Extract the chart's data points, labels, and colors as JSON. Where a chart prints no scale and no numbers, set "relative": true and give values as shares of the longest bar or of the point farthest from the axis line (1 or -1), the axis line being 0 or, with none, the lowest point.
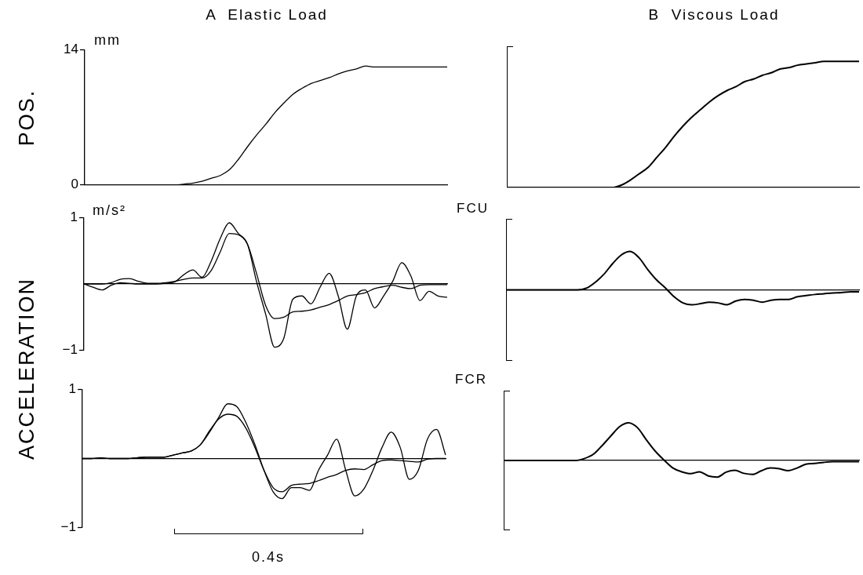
{
  "chart_data": [
    {
      "type": "line",
      "title": "A  Elastic Load",
      "ylabel": "POS.",
      "annotations": [
        "mm"
      ],
      "ylim": [
        0,
        14
      ],
      "yticks": [
        0,
        14
      ],
      "tick_labels": "y",
      "legend": false,
      "categories": [
        null,
        null,
        null,
        null,
        null,
        null,
        null,
        null,
        null,
        null,
        null,
        null,
        null,
        null,
        null,
        null,
        null,
        null,
        null,
        null,
        null,
        null,
        null,
        null,
        null,
        null,
        null,
        null,
        null,
        null,
        null,
        null,
        null,
        null,
        null,
        null,
        null,
        null,
        null,
        null,
        null
      ],
      "series": [
        {
          "color": "#000000",
          "values": [
            0,
            0,
            0,
            0,
            0,
            0,
            0,
            0,
            0,
            0,
            0,
            0.1,
            0.2,
            0.4,
            0.7,
            1.0,
            1.6,
            2.7,
            4.0,
            5.2,
            6.3,
            7.5,
            8.5,
            9.4,
            10.0,
            10.5,
            10.8,
            11.1,
            11.5,
            11.8,
            12.0,
            12.3,
            12.2,
            12.2,
            12.2,
            12.2,
            12.2,
            12.2,
            12.2,
            12.2,
            12.2
          ]
        }
      ]
    },
    {
      "type": "line",
      "title": "B  Viscous Load",
      "relative": true,
      "tick_labels": false,
      "legend": false,
      "categories": [
        null,
        null,
        null,
        null,
        null,
        null,
        null,
        null,
        null,
        null,
        null,
        null,
        null,
        null,
        null,
        null,
        null,
        null,
        null,
        null,
        null,
        null,
        null,
        null,
        null,
        null,
        null,
        null,
        null,
        null,
        null,
        null,
        null,
        null,
        null,
        null,
        null,
        null,
        null,
        null,
        null
      ],
      "series": [
        {
          "color": "#000000",
          "values": [
            0,
            0,
            0,
            0,
            0,
            0,
            0,
            0,
            0,
            0,
            0,
            0,
            0,
            0.02,
            0.06,
            0.11,
            0.16,
            0.24,
            0.32,
            0.41,
            0.49,
            0.56,
            0.62,
            0.68,
            0.73,
            0.77,
            0.8,
            0.84,
            0.86,
            0.89,
            0.91,
            0.94,
            0.95,
            0.97,
            0.98,
            0.99,
            1,
            1,
            1,
            1,
            1
          ]
        }
      ]
    },
    {
      "type": "line",
      "ylabel": "ACCELERATION",
      "annotations": [
        "m/s²"
      ],
      "ylim": [
        -1,
        1
      ],
      "yticks": [
        1,
        {
          "value": -1,
          "label": "−1"
        }
      ],
      "tick_labels": "y",
      "legend": false,
      "categories": [
        null,
        null,
        null,
        null,
        null,
        null,
        null,
        null,
        null,
        null,
        null,
        null,
        null,
        null,
        null,
        null,
        null,
        null,
        null,
        null,
        null,
        null,
        null,
        null,
        null,
        null,
        null,
        null,
        null,
        null,
        null,
        null,
        null,
        null,
        null,
        null,
        null,
        null,
        null,
        null,
        null
      ],
      "series": [
        {
          "color": "#000000",
          "values": [
            0,
            -0.05,
            -0.09,
            -0.02,
            0.02,
            0.01,
            0,
            0,
            0,
            0.01,
            0.03,
            0.14,
            0.21,
            0.1,
            0.34,
            0.68,
            0.92,
            0.76,
            0.6,
            0.04,
            -0.45,
            -0.95,
            -0.82,
            -0.23,
            -0.18,
            -0.3,
            -0.05,
            0.16,
            -0.18,
            -0.68,
            -0.18,
            -0.09,
            -0.36,
            -0.18,
            0.04,
            0.32,
            0.12,
            -0.25,
            -0.11,
            -0.18,
            -0.2
          ]
        },
        {
          "color": "#000000",
          "values": [
            0,
            0,
            0,
            0.02,
            0.07,
            0.08,
            0.04,
            0.01,
            0.01,
            0.02,
            0.04,
            0.07,
            0.09,
            0.09,
            0.2,
            0.48,
            0.76,
            0.74,
            0.6,
            0.16,
            -0.32,
            -0.52,
            -0.5,
            -0.42,
            -0.41,
            -0.39,
            -0.35,
            -0.31,
            -0.25,
            -0.18,
            -0.16,
            -0.13,
            -0.07,
            -0.04,
            -0.02,
            -0.05,
            -0.07,
            -0.02,
            -0.01,
            -0.01,
            -0.01
          ]
        }
      ]
    },
    {
      "type": "line",
      "ylabel": "FCU",
      "relative": true,
      "tick_labels": false,
      "legend": false,
      "categories": [
        null,
        null,
        null,
        null,
        null,
        null,
        null,
        null,
        null,
        null,
        null,
        null,
        null,
        null,
        null,
        null,
        null,
        null,
        null,
        null,
        null,
        null,
        null,
        null,
        null,
        null,
        null,
        null,
        null,
        null,
        null,
        null,
        null,
        null,
        null,
        null,
        null,
        null,
        null,
        null,
        null
      ],
      "series": [
        {
          "color": "#000000",
          "values": [
            0,
            0,
            0,
            0,
            0,
            0,
            0,
            0,
            0,
            0.04,
            0.19,
            0.4,
            0.68,
            0.91,
            1,
            0.84,
            0.53,
            0.26,
            0.05,
            -0.18,
            -0.34,
            -0.39,
            -0.36,
            -0.32,
            -0.34,
            -0.39,
            -0.29,
            -0.25,
            -0.27,
            -0.32,
            -0.27,
            -0.25,
            -0.25,
            -0.18,
            -0.15,
            -0.12,
            -0.1,
            -0.08,
            -0.07,
            -0.05,
            -0.05
          ]
        }
      ]
    },
    {
      "type": "line",
      "annotations": [
        "0.4s"
      ],
      "ylim": [
        -1,
        1
      ],
      "yticks": [
        1,
        {
          "value": -1,
          "label": "−1"
        }
      ],
      "tick_labels": "y",
      "legend": false,
      "categories": [
        null,
        null,
        null,
        null,
        null,
        null,
        null,
        null,
        null,
        null,
        null,
        null,
        null,
        null,
        null,
        null,
        null,
        null,
        null,
        null,
        null,
        null,
        null,
        null,
        null,
        null,
        null,
        null,
        null,
        null,
        null,
        null,
        null,
        null,
        null,
        null,
        null,
        null,
        null,
        null,
        null
      ],
      "series": [
        {
          "color": "#000000",
          "values": [
            0,
            0,
            0.01,
            0,
            0,
            0,
            0.01,
            0.02,
            0.02,
            0.02,
            0.05,
            0.08,
            0.11,
            0.2,
            0.38,
            0.59,
            0.79,
            0.75,
            0.52,
            0.2,
            -0.17,
            -0.48,
            -0.58,
            -0.42,
            -0.42,
            -0.46,
            -0.17,
            0.05,
            0.28,
            -0.17,
            -0.54,
            -0.44,
            -0.17,
            0.16,
            0.38,
            0.16,
            -0.3,
            -0.17,
            0.28,
            0.42,
            0.05
          ]
        },
        {
          "color": "#000000",
          "values": [
            0,
            0,
            0.01,
            0,
            0,
            0,
            0.01,
            0.02,
            0.02,
            0.02,
            0.05,
            0.08,
            0.11,
            0.2,
            0.4,
            0.57,
            0.64,
            0.61,
            0.44,
            0.16,
            -0.17,
            -0.42,
            -0.48,
            -0.39,
            -0.37,
            -0.36,
            -0.32,
            -0.27,
            -0.23,
            -0.17,
            -0.15,
            -0.16,
            -0.09,
            -0.03,
            -0.02,
            -0.03,
            -0.04,
            -0.05,
            -0.01,
            0,
            0
          ]
        }
      ]
    },
    {
      "type": "line",
      "ylabel": "FCR",
      "relative": true,
      "tick_labels": false,
      "legend": false,
      "categories": [
        null,
        null,
        null,
        null,
        null,
        null,
        null,
        null,
        null,
        null,
        null,
        null,
        null,
        null,
        null,
        null,
        null,
        null,
        null,
        null,
        null,
        null,
        null,
        null,
        null,
        null,
        null,
        null,
        null,
        null,
        null,
        null,
        null,
        null,
        null,
        null,
        null,
        null,
        null,
        null,
        null
      ],
      "series": [
        {
          "color": "#000000",
          "values": [
            0,
            0,
            0,
            0,
            0,
            0,
            0,
            0,
            0,
            0.05,
            0.16,
            0.39,
            0.65,
            0.9,
            1,
            0.87,
            0.55,
            0.25,
            0.01,
            -0.2,
            -0.3,
            -0.35,
            -0.3,
            -0.41,
            -0.44,
            -0.31,
            -0.26,
            -0.34,
            -0.37,
            -0.27,
            -0.2,
            -0.22,
            -0.27,
            -0.2,
            -0.1,
            -0.08,
            -0.05,
            -0.03,
            -0.03,
            -0.03,
            -0.03
          ]
        }
      ]
    }
  ]
}
